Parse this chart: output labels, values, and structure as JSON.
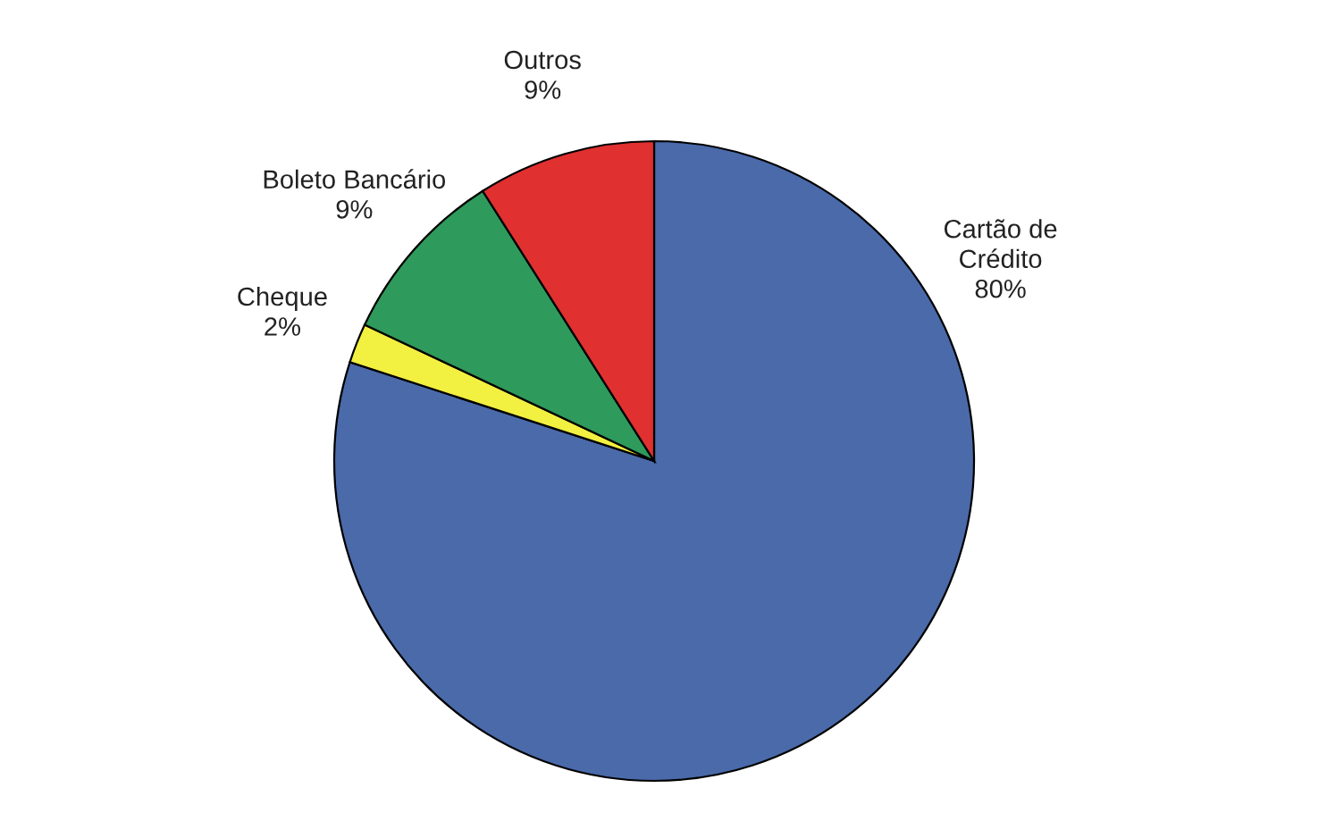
{
  "chart_data": {
    "type": "pie",
    "categories": [
      "Cartão de Crédito",
      "Cheque",
      "Boleto Bancário",
      "Outros"
    ],
    "values": [
      80,
      2,
      9,
      9
    ],
    "colors": [
      "#4a6aaa",
      "#f2f040",
      "#2e9a5c",
      "#e03030"
    ],
    "value_labels": [
      "80%",
      "2%",
      "9%",
      "9%"
    ],
    "legend": false
  }
}
